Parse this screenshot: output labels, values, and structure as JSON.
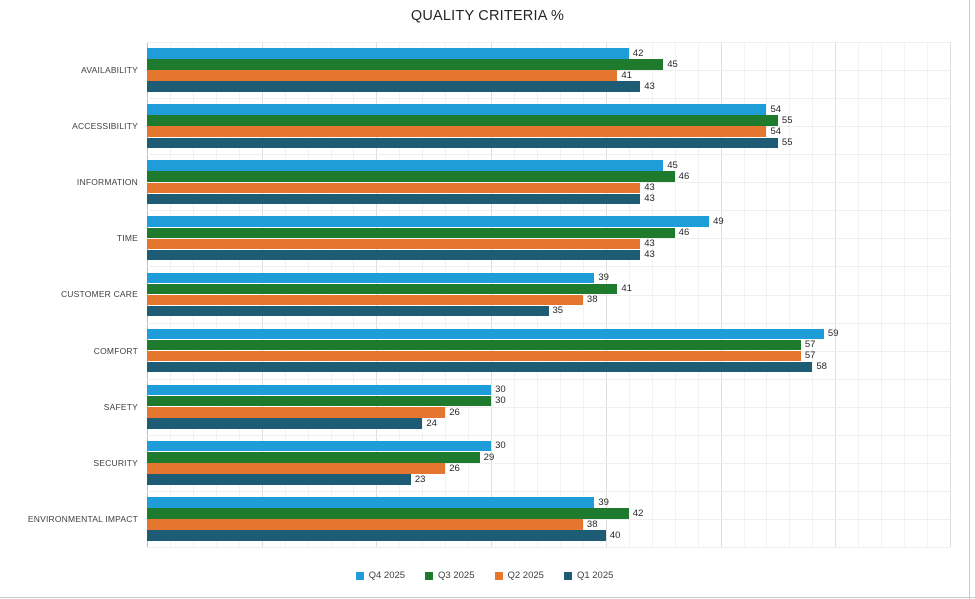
{
  "title": "QUALITY CRITERIA %",
  "chart_data": {
    "type": "bar",
    "orientation": "horizontal",
    "title": "QUALITY CRITERIA %",
    "categories": [
      "AVAILABILITY",
      "ACCESSIBILITY",
      "INFORMATION",
      "TIME",
      "CUSTOMER CARE",
      "COMFORT",
      "SAFETY",
      "SECURITY",
      "ENVIRONMENTAL IMPACT"
    ],
    "series": [
      {
        "name": "Q4 2025",
        "color": "#1E9DD9",
        "values": [
          42,
          54,
          45,
          49,
          39,
          59,
          30,
          30,
          39
        ]
      },
      {
        "name": "Q3 2025",
        "color": "#1E7A2D",
        "values": [
          45,
          55,
          46,
          46,
          41,
          57,
          30,
          29,
          42
        ]
      },
      {
        "name": "Q2 2025",
        "color": "#E5762F",
        "values": [
          41,
          54,
          43,
          43,
          38,
          57,
          26,
          26,
          38
        ]
      },
      {
        "name": "Q1 2025",
        "color": "#1E5B75",
        "values": [
          43,
          55,
          43,
          43,
          35,
          58,
          24,
          23,
          40
        ]
      }
    ],
    "xlim": [
      0,
      70
    ],
    "value_labels": "outside-end",
    "grid": {
      "vertical_minor_unit": 2,
      "vertical_major_unit": 10,
      "horizontal_lines_per_category": 2,
      "grid_on": true
    },
    "legend_position": "bottom",
    "x_tick_labels_shown": false
  },
  "colors": {
    "title_text": "#262626",
    "value_label_text": "#262626",
    "category_label_text": "#404040",
    "legend_text": "#404040",
    "grid_minor": "#F2F2F2",
    "grid_major": "#DEDEDE",
    "axis_line": "#BDBDBD",
    "frame_edge": "#C9C9C9",
    "background": "#FFFFFF"
  }
}
